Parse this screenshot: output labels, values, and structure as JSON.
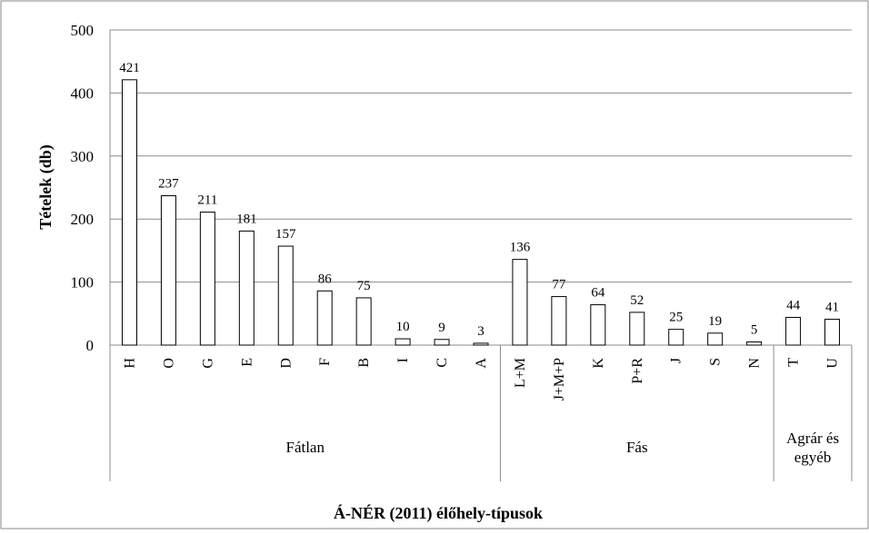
{
  "chart_data": {
    "type": "bar",
    "title": "",
    "xlabel": "Á-NÉR (2011) élőhely-típusok",
    "ylabel": "Tételek (db)",
    "ylim": [
      0,
      500
    ],
    "yticks": [
      0,
      100,
      200,
      300,
      400,
      500
    ],
    "grid": true,
    "categories": [
      "H",
      "O",
      "G",
      "E",
      "D",
      "F",
      "B",
      "I",
      "C",
      "A",
      "L+M",
      "J+M+P",
      "K",
      "P+R",
      "J",
      "S",
      "N",
      "T",
      "U"
    ],
    "values": [
      421,
      237,
      211,
      181,
      157,
      86,
      75,
      10,
      9,
      3,
      136,
      77,
      64,
      52,
      25,
      19,
      5,
      44,
      41
    ],
    "groups": [
      {
        "name": "Fátlan",
        "lines": [
          "Fátlan"
        ],
        "count": 10
      },
      {
        "name": "Fás",
        "lines": [
          "Fás"
        ],
        "count": 7
      },
      {
        "name": "Agrár és egyéb",
        "lines": [
          "Agrár és",
          "egyéb"
        ],
        "count": 2
      }
    ]
  }
}
